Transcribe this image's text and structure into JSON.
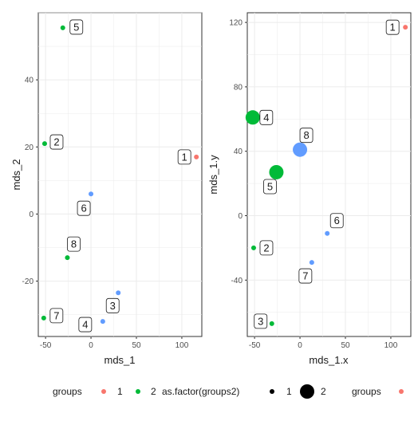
{
  "chart_data": [
    {
      "type": "scatter",
      "xlabel": "mds_1",
      "ylabel": "mds_2",
      "xlim": [
        -58,
        122
      ],
      "ylim": [
        -36.5,
        60
      ],
      "xticks": [
        -50,
        0,
        50,
        100
      ],
      "yticks": [
        -20,
        0,
        20,
        40
      ],
      "grid": true,
      "points": [
        {
          "label": "1",
          "x": 116,
          "y": 17,
          "group": "1",
          "size": "small"
        },
        {
          "label": "2",
          "x": -51,
          "y": 21,
          "group": "2",
          "size": "small"
        },
        {
          "label": "3",
          "x": 30,
          "y": -23.5,
          "group": "3",
          "size": "small"
        },
        {
          "label": "4",
          "x": 13,
          "y": -32,
          "group": "3",
          "size": "small"
        },
        {
          "label": "5",
          "x": -31,
          "y": 55.5,
          "group": "2",
          "size": "small"
        },
        {
          "label": "6",
          "x": 0,
          "y": 6,
          "group": "3",
          "size": "small"
        },
        {
          "label": "7",
          "x": -52,
          "y": -31,
          "group": "2",
          "size": "small"
        },
        {
          "label": "8",
          "x": -26,
          "y": -13,
          "group": "2",
          "size": "small"
        }
      ]
    },
    {
      "type": "scatter",
      "xlabel": "mds_1.x",
      "ylabel": "mds_1.y",
      "xlim": [
        -58,
        122
      ],
      "ylim": [
        -75,
        126
      ],
      "xticks": [
        -50,
        0,
        50,
        100
      ],
      "yticks": [
        -40,
        0,
        40,
        80,
        120
      ],
      "grid": true,
      "points": [
        {
          "label": "1",
          "x": 116,
          "y": 117,
          "group": "1",
          "size": "small"
        },
        {
          "label": "2",
          "x": -51,
          "y": -20,
          "group": "2",
          "size": "small"
        },
        {
          "label": "3",
          "x": -31,
          "y": -67,
          "group": "2",
          "size": "small"
        },
        {
          "label": "4",
          "x": -52,
          "y": 61,
          "group": "2",
          "size": "large"
        },
        {
          "label": "5",
          "x": -26,
          "y": 27,
          "group": "2",
          "size": "large"
        },
        {
          "label": "6",
          "x": 30,
          "y": -11,
          "group": "3",
          "size": "small"
        },
        {
          "label": "7",
          "x": 13,
          "y": -29,
          "group": "3",
          "size": "small"
        },
        {
          "label": "8",
          "x": 0,
          "y": 41,
          "group": "3",
          "size": "large"
        }
      ]
    }
  ],
  "colors": {
    "1": "#F8766D",
    "2": "#00BA38",
    "3": "#619CFF"
  },
  "legend": {
    "groups_title": "groups",
    "groups_items": [
      "1",
      "2"
    ],
    "size_title": "as.factor(groups2)",
    "size_items": [
      "1",
      "2"
    ],
    "groups_title_2": "groups"
  }
}
